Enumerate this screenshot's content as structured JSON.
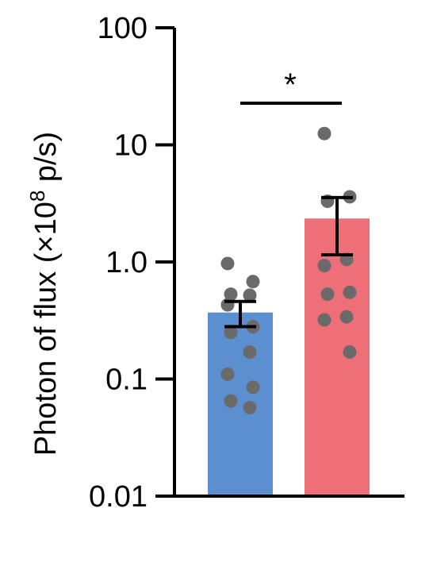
{
  "chart_data": {
    "type": "bar",
    "title": "",
    "xlabel": "",
    "ylabel": {
      "prefix": "Photon of flux (×10",
      "superscript": "8",
      "suffix": " p/s)"
    },
    "yscale": "log",
    "ylim": [
      0.01,
      100
    ],
    "y_ticks": [
      100,
      10,
      1.0,
      0.1,
      0.01
    ],
    "y_tick_labels": [
      "100",
      "10",
      "1.0",
      "0.1",
      "0.01"
    ],
    "categories": [
      "",
      ""
    ],
    "bar_colors": [
      "#5b8fd0",
      "#ee6f78"
    ],
    "point_color": "#6a6a6a",
    "values": [
      0.37,
      2.35
    ],
    "error": [
      {
        "lower": 0.28,
        "upper": 0.46
      },
      {
        "lower": 1.15,
        "upper": 3.55
      }
    ],
    "points": [
      [
        0.97,
        0.68,
        0.53,
        0.52,
        0.43,
        0.28,
        0.25,
        0.17,
        0.11,
        0.085,
        0.065,
        0.057
      ],
      [
        12.5,
        3.6,
        3.3,
        1.05,
        0.93,
        0.55,
        0.53,
        0.34,
        0.32,
        0.17
      ]
    ],
    "significance": {
      "label": "*",
      "between": [
        0,
        1
      ]
    },
    "grid": false,
    "legend": "none"
  }
}
